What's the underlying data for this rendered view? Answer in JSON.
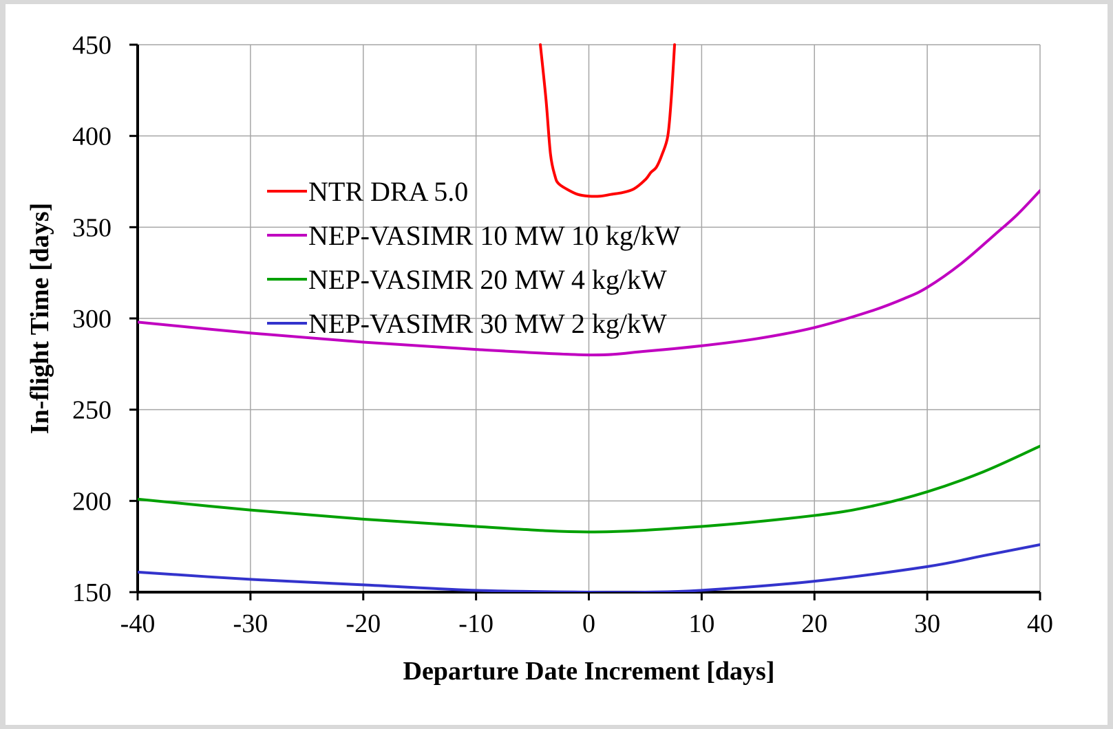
{
  "chart_data": {
    "type": "line",
    "title": "",
    "xlabel": "Departure Date Increment [days]",
    "ylabel": "In-flight Time [days]",
    "xlim": [
      -40,
      40
    ],
    "ylim": [
      150,
      450
    ],
    "xticks": [
      -40,
      -30,
      -20,
      -10,
      0,
      10,
      20,
      30,
      40
    ],
    "yticks": [
      150,
      200,
      250,
      300,
      350,
      400,
      450
    ],
    "xtick_labels": [
      "-40",
      "-30",
      "-20",
      "-10",
      "0",
      "10",
      "20",
      "30",
      "40"
    ],
    "ytick_labels": [
      "150",
      "200",
      "250",
      "300",
      "350",
      "400",
      "450"
    ],
    "grid": true,
    "legend_position": "upper-left-center",
    "series": [
      {
        "name": "NTR DRA 5.0",
        "color": "#ff0000",
        "x": [
          -4.3,
          -3.8,
          -3.4,
          -3.0,
          -2.7,
          -2.0,
          -1.0,
          0.0,
          1.0,
          2.0,
          3.0,
          4.0,
          5.0,
          5.5,
          6.0,
          6.5,
          7.0,
          7.3,
          7.6
        ],
        "y": [
          450,
          420,
          390,
          378,
          374,
          371,
          368,
          367,
          367,
          368,
          369,
          371,
          376,
          380,
          383,
          390,
          400,
          420,
          450
        ]
      },
      {
        "name": "NEP-VASIMR 10 MW 10 kg/kW",
        "color": "#c000c0",
        "x": [
          -40,
          -30,
          -20,
          -10,
          0,
          5,
          10,
          15,
          20,
          25,
          28,
          30,
          33,
          36,
          38,
          40
        ],
        "y": [
          298,
          292,
          287,
          283,
          280,
          282,
          285,
          289,
          295,
          304,
          311,
          317,
          330,
          346,
          357,
          370
        ]
      },
      {
        "name": "NEP-VASIMR 20 MW 4 kg/kW",
        "color": "#00a000",
        "x": [
          -40,
          -30,
          -20,
          -10,
          0,
          10,
          20,
          25,
          30,
          35,
          40
        ],
        "y": [
          201,
          195,
          190,
          186,
          183,
          186,
          192,
          197,
          205,
          216,
          230
        ]
      },
      {
        "name": "NEP-VASIMR 30 MW 2 kg/kW",
        "color": "#3333cc",
        "x": [
          -40,
          -30,
          -20,
          -10,
          0,
          5,
          10,
          20,
          30,
          35,
          40
        ],
        "y": [
          161,
          157,
          154,
          151,
          150,
          150,
          151,
          156,
          164,
          170,
          176
        ]
      }
    ]
  }
}
